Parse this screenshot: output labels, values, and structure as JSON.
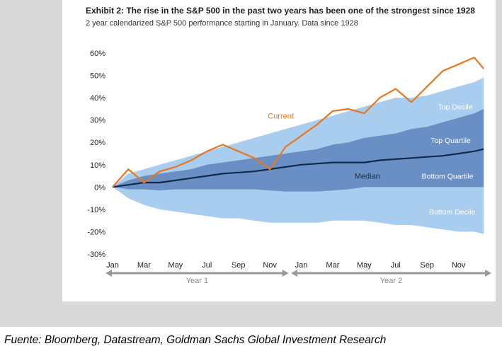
{
  "title": "Exhibit 2: The rise in the S&P 500 in the past two years has been one of the strongest since 1928",
  "subtitle": "2 year calendarized S&P 500 performance starting in January. Data since 1928",
  "source": "Fuente: Bloomberg, Datastream, Goldman Sachs Global Investment Research",
  "colors": {
    "decile_band": "#a9cdee",
    "quartile_band": "#6a8fc4",
    "current": "#e87722",
    "median": "#13294b",
    "axis_arrow": "#9a9a9a"
  },
  "chart_data": {
    "type": "area",
    "title": "",
    "xlabel": "",
    "ylabel": "",
    "ylim": [
      -30,
      60
    ],
    "yticks": [
      "60%",
      "50%",
      "40%",
      "30%",
      "20%",
      "10%",
      "0%",
      "-10%",
      "-20%",
      "-30%"
    ],
    "ytick_values": [
      60,
      50,
      40,
      30,
      20,
      10,
      0,
      -10,
      -20,
      -30
    ],
    "xlim": [
      0,
      24
    ],
    "xticks": [
      {
        "month": 0,
        "label": "Jan"
      },
      {
        "month": 2,
        "label": "Mar"
      },
      {
        "month": 4,
        "label": "May"
      },
      {
        "month": 6,
        "label": "Jul"
      },
      {
        "month": 8,
        "label": "Sep"
      },
      {
        "month": 10,
        "label": "Nov"
      },
      {
        "month": 12,
        "label": "Jan"
      },
      {
        "month": 14,
        "label": "Mar"
      },
      {
        "month": 16,
        "label": "May"
      },
      {
        "month": 18,
        "label": "Jul"
      },
      {
        "month": 20,
        "label": "Sep"
      },
      {
        "month": 22,
        "label": "Nov"
      }
    ],
    "periods": [
      {
        "label": "Year 1",
        "start": 0,
        "end": 11.2
      },
      {
        "label": "Year 2",
        "start": 11.8,
        "end": 24
      }
    ],
    "x": [
      0,
      1,
      2,
      3,
      4,
      5,
      6,
      7,
      8,
      9,
      10,
      11,
      12,
      13,
      14,
      15,
      16,
      17,
      18,
      19,
      20,
      21,
      22,
      23,
      23.6
    ],
    "series": [
      {
        "name": "Top Decile",
        "role": "band_upper",
        "values": [
          0,
          6,
          8,
          10,
          12,
          14,
          16,
          18,
          20,
          22,
          24,
          26,
          28,
          30,
          32,
          34,
          36,
          38,
          40,
          40,
          41,
          43,
          45,
          47,
          49
        ]
      },
      {
        "name": "Top Quartile",
        "role": "band_inner_upper",
        "values": [
          0,
          3,
          5,
          6,
          7,
          8,
          10,
          11,
          12,
          13,
          14,
          15,
          16,
          17,
          19,
          20,
          22,
          23,
          24,
          26,
          27,
          29,
          31,
          33,
          35
        ]
      },
      {
        "name": "Bottom Quartile",
        "role": "band_inner_lower",
        "values": [
          0,
          -1,
          -1,
          -1.5,
          -1,
          -1,
          -1,
          -1,
          -1,
          -1,
          -1.5,
          -2,
          -2,
          -2,
          -1.5,
          -1,
          0,
          0,
          0,
          0,
          0,
          0,
          0,
          0,
          0
        ]
      },
      {
        "name": "Bottom Decile",
        "role": "band_lower",
        "values": [
          0,
          -5,
          -8,
          -10,
          -11,
          -12,
          -13,
          -14,
          -14,
          -15,
          -16,
          -16,
          -16,
          -16,
          -15,
          -15,
          -15,
          -16,
          -17,
          -17,
          -18,
          -19,
          -20,
          -20,
          -21
        ]
      },
      {
        "name": "Median",
        "role": "line",
        "values": [
          0,
          1,
          2,
          2,
          3,
          4,
          5,
          6,
          6.5,
          7,
          8,
          9,
          10,
          10.5,
          11,
          11,
          11,
          12,
          12.5,
          13,
          13.5,
          14,
          15,
          16,
          17
        ]
      },
      {
        "name": "Current",
        "role": "line",
        "values": [
          0,
          8,
          2,
          7,
          9,
          12,
          16,
          19,
          16,
          13,
          8,
          18,
          23,
          28,
          34,
          35,
          33,
          40,
          44,
          38,
          45,
          52,
          55,
          58,
          53
        ]
      }
    ],
    "annotations": [
      {
        "text": "Current",
        "x": 10.7,
        "y": 32
      },
      {
        "text": "Median",
        "x": 16.2,
        "y": 5
      },
      {
        "text": "Top Decile",
        "x": 21.8,
        "y": 36
      },
      {
        "text": "Top Quartile",
        "x": 21.5,
        "y": 21
      },
      {
        "text": "Bottom Quartile",
        "x": 21.3,
        "y": 5
      },
      {
        "text": "Bottom Decile",
        "x": 21.6,
        "y": -11
      }
    ]
  }
}
